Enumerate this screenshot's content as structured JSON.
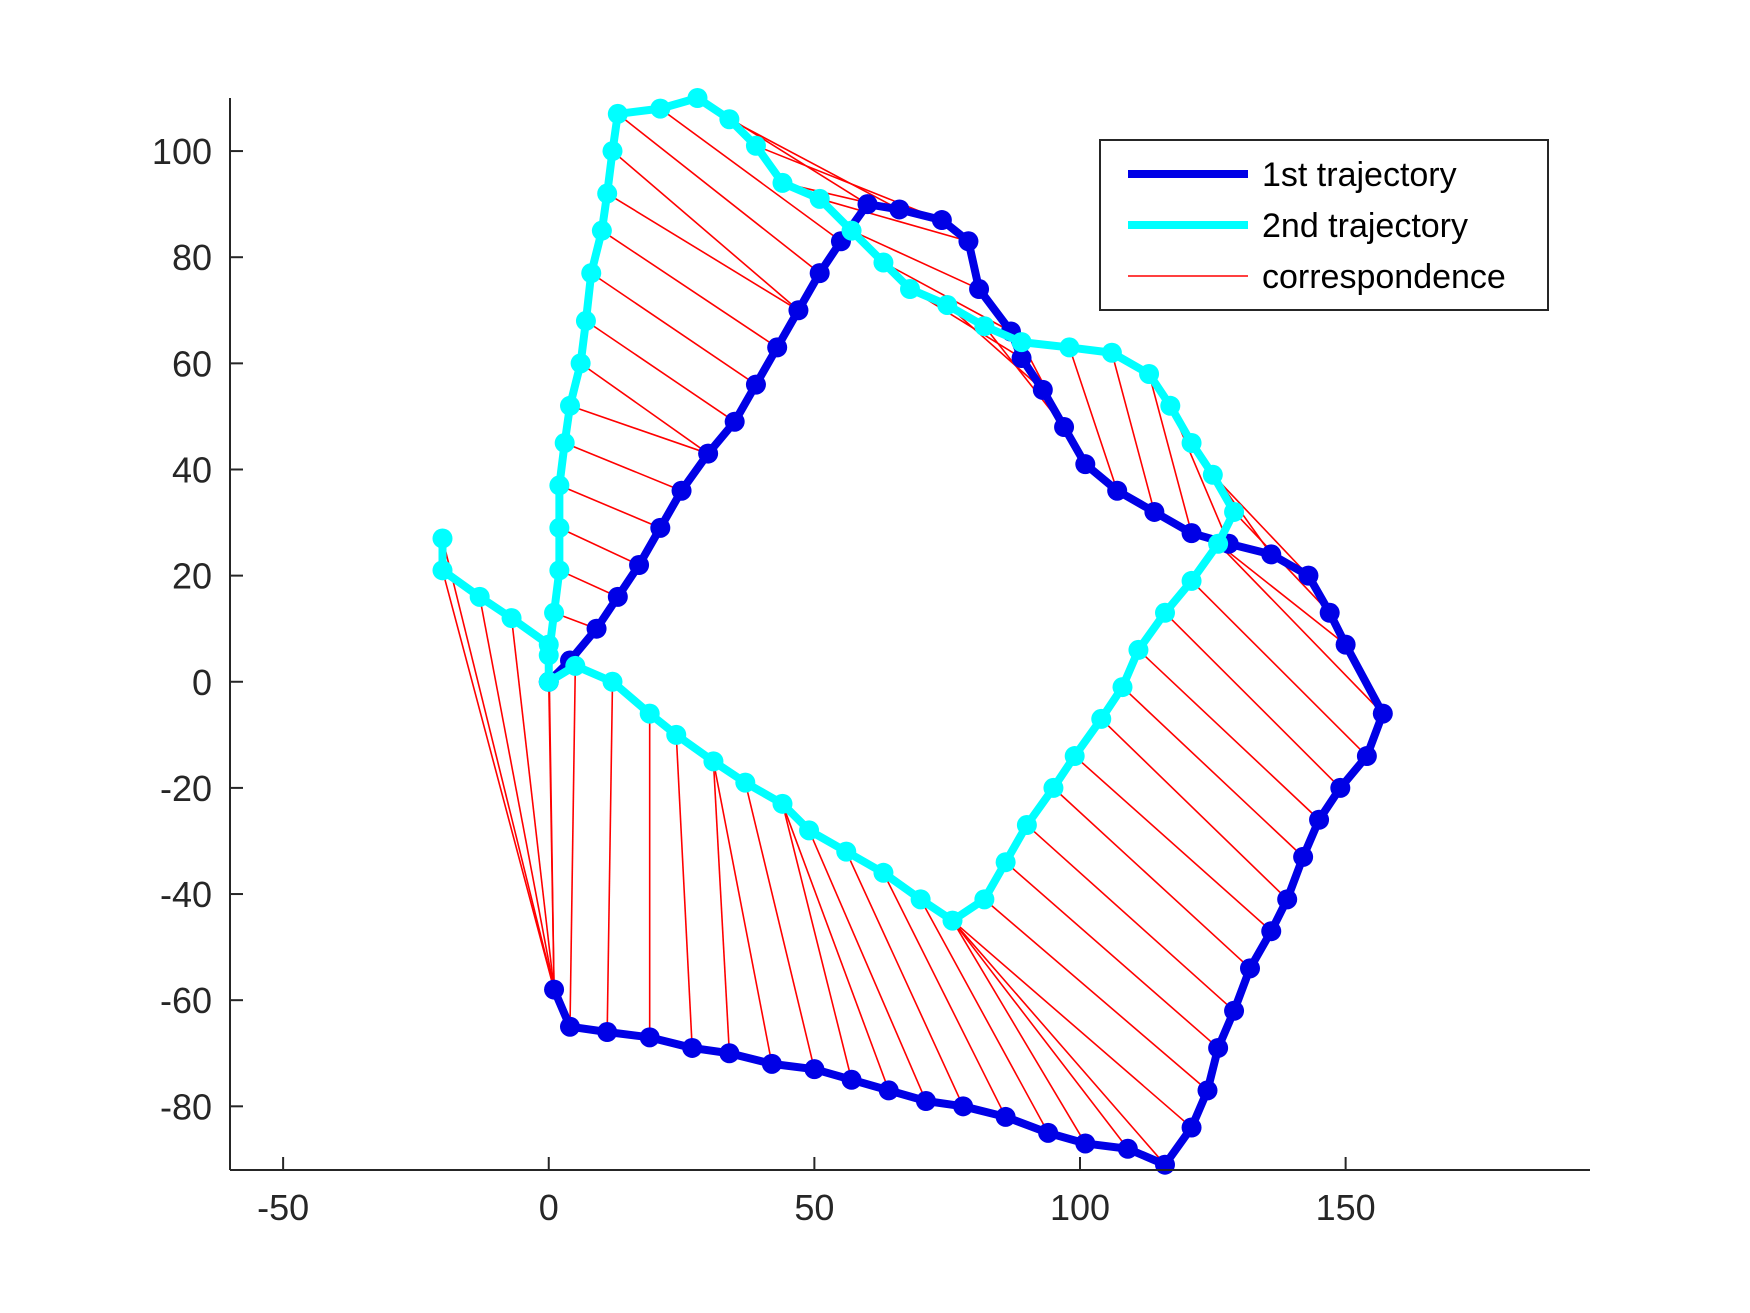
{
  "chart_data": {
    "type": "line",
    "title": "",
    "xlabel": "",
    "ylabel": "",
    "xlim": [
      -60,
      196
    ],
    "ylim": [
      -92,
      110
    ],
    "xticks": [
      -50,
      0,
      50,
      100,
      150
    ],
    "yticks": [
      -80,
      -60,
      -40,
      -20,
      0,
      20,
      40,
      60,
      80,
      100
    ],
    "xtick_labels": [
      "-50",
      "0",
      "50",
      "100",
      "150"
    ],
    "ytick_labels": [
      "-80",
      "-60",
      "-40",
      "-20",
      "0",
      "20",
      "40",
      "60",
      "80",
      "100"
    ],
    "grid": false,
    "legend_position": "top-right",
    "series": [
      {
        "name": "1st trajectory",
        "color": "#0000e6",
        "marker": "filled-circle",
        "points": [
          [
            0,
            0
          ],
          [
            4,
            4
          ],
          [
            9,
            10
          ],
          [
            13,
            16
          ],
          [
            17,
            22
          ],
          [
            21,
            29
          ],
          [
            25,
            36
          ],
          [
            30,
            43
          ],
          [
            35,
            49
          ],
          [
            39,
            56
          ],
          [
            43,
            63
          ],
          [
            47,
            70
          ],
          [
            51,
            77
          ],
          [
            55,
            83
          ],
          [
            60,
            90
          ],
          [
            66,
            89
          ],
          [
            74,
            87
          ],
          [
            79,
            83
          ],
          [
            81,
            74
          ],
          [
            87,
            66
          ],
          [
            89,
            61
          ],
          [
            93,
            55
          ],
          [
            97,
            48
          ],
          [
            101,
            41
          ],
          [
            107,
            36
          ],
          [
            114,
            32
          ],
          [
            121,
            28
          ],
          [
            128,
            26
          ],
          [
            136,
            24
          ],
          [
            143,
            20
          ],
          [
            147,
            13
          ],
          [
            150,
            7
          ],
          [
            157,
            -6
          ],
          [
            154,
            -14
          ],
          [
            149,
            -20
          ],
          [
            145,
            -26
          ],
          [
            142,
            -33
          ],
          [
            139,
            -41
          ],
          [
            136,
            -47
          ],
          [
            132,
            -54
          ],
          [
            129,
            -62
          ],
          [
            126,
            -69
          ],
          [
            124,
            -77
          ],
          [
            121,
            -84
          ],
          [
            116,
            -91
          ],
          [
            109,
            -88
          ],
          [
            101,
            -87
          ],
          [
            94,
            -85
          ],
          [
            86,
            -82
          ],
          [
            78,
            -80
          ],
          [
            71,
            -79
          ],
          [
            64,
            -77
          ],
          [
            57,
            -75
          ],
          [
            50,
            -73
          ],
          [
            42,
            -72
          ],
          [
            34,
            -70
          ],
          [
            27,
            -69
          ],
          [
            19,
            -67
          ],
          [
            11,
            -66
          ],
          [
            4,
            -65
          ],
          [
            1,
            -58
          ]
        ]
      },
      {
        "name": "2nd trajectory",
        "color": "#00ffff",
        "marker": "filled-circle",
        "points": [
          [
            -20,
            27
          ],
          [
            -20,
            21
          ],
          [
            -13,
            16
          ],
          [
            -7,
            12
          ],
          [
            0,
            7
          ],
          [
            0,
            0
          ],
          [
            5,
            3
          ],
          [
            12,
            0
          ],
          [
            19,
            -6
          ],
          [
            24,
            -10
          ],
          [
            31,
            -15
          ],
          [
            37,
            -19
          ],
          [
            44,
            -23
          ],
          [
            49,
            -28
          ],
          [
            56,
            -32
          ],
          [
            63,
            -36
          ],
          [
            70,
            -41
          ],
          [
            76,
            -45
          ],
          [
            82,
            -41
          ],
          [
            86,
            -34
          ],
          [
            90,
            -27
          ],
          [
            95,
            -20
          ],
          [
            99,
            -14
          ],
          [
            104,
            -7
          ],
          [
            108,
            -1
          ],
          [
            111,
            6
          ],
          [
            116,
            13
          ],
          [
            121,
            19
          ],
          [
            126,
            26
          ],
          [
            129,
            32
          ],
          [
            125,
            39
          ],
          [
            121,
            45
          ],
          [
            117,
            52
          ],
          [
            113,
            58
          ],
          [
            106,
            62
          ],
          [
            98,
            63
          ],
          [
            89,
            64
          ],
          [
            82,
            67
          ],
          [
            75,
            71
          ],
          [
            68,
            74
          ],
          [
            63,
            79
          ],
          [
            57,
            85
          ],
          [
            51,
            91
          ],
          [
            44,
            94
          ],
          [
            39,
            101
          ],
          [
            34,
            106
          ],
          [
            28,
            110
          ],
          [
            21,
            108
          ],
          [
            13,
            107
          ],
          [
            12,
            100
          ],
          [
            11,
            92
          ],
          [
            10,
            85
          ],
          [
            8,
            77
          ],
          [
            7,
            68
          ],
          [
            6,
            60
          ],
          [
            4,
            52
          ],
          [
            3,
            45
          ],
          [
            2,
            37
          ],
          [
            2,
            29
          ],
          [
            2,
            21
          ],
          [
            1,
            13
          ],
          [
            0,
            5
          ]
        ]
      }
    ],
    "correspondence": {
      "name": "correspondence",
      "color": "#ff0000",
      "pairs": [
        [
          [
            -20,
            27
          ],
          [
            1,
            -58
          ]
        ],
        [
          [
            -20,
            21
          ],
          [
            1,
            -58
          ]
        ],
        [
          [
            -13,
            16
          ],
          [
            1,
            -58
          ]
        ],
        [
          [
            -7,
            12
          ],
          [
            1,
            -58
          ]
        ],
        [
          [
            0,
            7
          ],
          [
            1,
            -58
          ]
        ],
        [
          [
            0,
            0
          ],
          [
            1,
            -58
          ]
        ],
        [
          [
            5,
            3
          ],
          [
            4,
            -65
          ]
        ],
        [
          [
            12,
            0
          ],
          [
            11,
            -66
          ]
        ],
        [
          [
            19,
            -6
          ],
          [
            19,
            -67
          ]
        ],
        [
          [
            24,
            -10
          ],
          [
            27,
            -69
          ]
        ],
        [
          [
            31,
            -15
          ],
          [
            34,
            -70
          ]
        ],
        [
          [
            31,
            -15
          ],
          [
            42,
            -72
          ]
        ],
        [
          [
            37,
            -19
          ],
          [
            50,
            -73
          ]
        ],
        [
          [
            44,
            -23
          ],
          [
            57,
            -75
          ]
        ],
        [
          [
            44,
            -23
          ],
          [
            64,
            -77
          ]
        ],
        [
          [
            49,
            -28
          ],
          [
            71,
            -79
          ]
        ],
        [
          [
            56,
            -32
          ],
          [
            78,
            -80
          ]
        ],
        [
          [
            63,
            -36
          ],
          [
            86,
            -82
          ]
        ],
        [
          [
            70,
            -41
          ],
          [
            94,
            -85
          ]
        ],
        [
          [
            76,
            -45
          ],
          [
            101,
            -87
          ]
        ],
        [
          [
            76,
            -45
          ],
          [
            109,
            -88
          ]
        ],
        [
          [
            76,
            -45
          ],
          [
            116,
            -91
          ]
        ],
        [
          [
            76,
            -45
          ],
          [
            121,
            -84
          ]
        ],
        [
          [
            82,
            -41
          ],
          [
            124,
            -77
          ]
        ],
        [
          [
            86,
            -34
          ],
          [
            126,
            -69
          ]
        ],
        [
          [
            90,
            -27
          ],
          [
            129,
            -62
          ]
        ],
        [
          [
            95,
            -20
          ],
          [
            132,
            -54
          ]
        ],
        [
          [
            99,
            -14
          ],
          [
            136,
            -47
          ]
        ],
        [
          [
            104,
            -7
          ],
          [
            139,
            -41
          ]
        ],
        [
          [
            108,
            -1
          ],
          [
            142,
            -33
          ]
        ],
        [
          [
            111,
            6
          ],
          [
            145,
            -26
          ]
        ],
        [
          [
            116,
            13
          ],
          [
            149,
            -20
          ]
        ],
        [
          [
            121,
            19
          ],
          [
            154,
            -14
          ]
        ],
        [
          [
            126,
            26
          ],
          [
            157,
            -6
          ]
        ],
        [
          [
            126,
            26
          ],
          [
            150,
            7
          ]
        ],
        [
          [
            129,
            32
          ],
          [
            147,
            13
          ]
        ],
        [
          [
            125,
            39
          ],
          [
            143,
            20
          ]
        ],
        [
          [
            121,
            45
          ],
          [
            136,
            24
          ]
        ],
        [
          [
            117,
            52
          ],
          [
            128,
            26
          ]
        ],
        [
          [
            113,
            58
          ],
          [
            121,
            28
          ]
        ],
        [
          [
            106,
            62
          ],
          [
            114,
            32
          ]
        ],
        [
          [
            98,
            63
          ],
          [
            107,
            36
          ]
        ],
        [
          [
            89,
            64
          ],
          [
            101,
            41
          ]
        ],
        [
          [
            82,
            67
          ],
          [
            97,
            48
          ]
        ],
        [
          [
            75,
            71
          ],
          [
            93,
            55
          ]
        ],
        [
          [
            68,
            74
          ],
          [
            89,
            61
          ]
        ],
        [
          [
            63,
            79
          ],
          [
            87,
            66
          ]
        ],
        [
          [
            57,
            85
          ],
          [
            81,
            74
          ]
        ],
        [
          [
            51,
            91
          ],
          [
            79,
            83
          ]
        ],
        [
          [
            44,
            94
          ],
          [
            74,
            87
          ]
        ],
        [
          [
            39,
            101
          ],
          [
            74,
            87
          ]
        ],
        [
          [
            34,
            106
          ],
          [
            66,
            89
          ]
        ],
        [
          [
            28,
            110
          ],
          [
            60,
            90
          ]
        ],
        [
          [
            21,
            108
          ],
          [
            55,
            83
          ]
        ],
        [
          [
            13,
            107
          ],
          [
            51,
            77
          ]
        ],
        [
          [
            12,
            100
          ],
          [
            47,
            70
          ]
        ],
        [
          [
            11,
            92
          ],
          [
            47,
            70
          ]
        ],
        [
          [
            10,
            85
          ],
          [
            43,
            63
          ]
        ],
        [
          [
            8,
            77
          ],
          [
            39,
            56
          ]
        ],
        [
          [
            7,
            68
          ],
          [
            35,
            49
          ]
        ],
        [
          [
            6,
            60
          ],
          [
            30,
            43
          ]
        ],
        [
          [
            4,
            52
          ],
          [
            30,
            43
          ]
        ],
        [
          [
            3,
            45
          ],
          [
            25,
            36
          ]
        ],
        [
          [
            2,
            37
          ],
          [
            21,
            29
          ]
        ],
        [
          [
            2,
            29
          ],
          [
            17,
            22
          ]
        ],
        [
          [
            2,
            21
          ],
          [
            13,
            16
          ]
        ],
        [
          [
            1,
            13
          ],
          [
            9,
            10
          ]
        ]
      ]
    },
    "legend": [
      "1st trajectory",
      "2nd trajectory",
      "correspondence"
    ]
  }
}
